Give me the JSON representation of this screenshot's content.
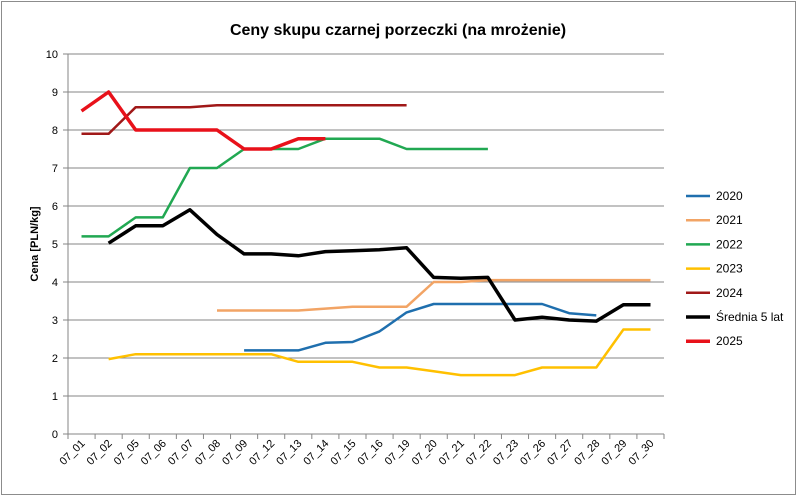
{
  "chart_data": {
    "type": "line",
    "title": "Ceny skupu czarnej porzeczki (na mrożenie)",
    "ylabel": "Cena [PLN/kg]",
    "xlabel": "",
    "ylim": [
      0,
      10
    ],
    "yticks": [
      "0",
      "1",
      "2",
      "3",
      "4",
      "5",
      "6",
      "7",
      "8",
      "9",
      "10"
    ],
    "grid": "horizontal",
    "legend_position": "right",
    "categories": [
      "07_01",
      "07_02",
      "07_05",
      "07_06",
      "07_07",
      "07_08",
      "07_09",
      "07_12",
      "07_13",
      "07_14",
      "07_15",
      "07_16",
      "07_19",
      "07_20",
      "07_21",
      "07_22",
      "07_23",
      "07_26",
      "07_27",
      "07_28",
      "07_29",
      "07_30"
    ],
    "series": [
      {
        "name": "2020",
        "color": "#1f6fae",
        "width": 2.5,
        "values": [
          null,
          null,
          null,
          null,
          null,
          null,
          2.2,
          2.2,
          2.2,
          2.4,
          2.42,
          2.7,
          3.2,
          3.42,
          3.42,
          3.42,
          3.42,
          3.42,
          3.18,
          3.12,
          null,
          null
        ]
      },
      {
        "name": "2021",
        "color": "#f2a465",
        "width": 2.5,
        "values": [
          null,
          null,
          null,
          null,
          null,
          3.25,
          3.25,
          3.25,
          3.25,
          3.3,
          3.35,
          3.35,
          3.35,
          4.0,
          4.0,
          4.05,
          4.05,
          4.05,
          4.05,
          4.05,
          4.05,
          4.05
        ]
      },
      {
        "name": "2022",
        "color": "#21a852",
        "width": 2.5,
        "values": [
          5.2,
          5.2,
          5.7,
          5.7,
          7.0,
          7.0,
          7.5,
          7.5,
          7.5,
          7.77,
          7.77,
          7.77,
          7.5,
          7.5,
          7.5,
          7.5,
          null,
          null,
          null,
          null,
          null,
          null
        ]
      },
      {
        "name": "2023",
        "color": "#ffc000",
        "width": 2.5,
        "values": [
          null,
          1.97,
          2.1,
          2.1,
          2.1,
          2.1,
          2.1,
          2.1,
          1.9,
          1.9,
          1.9,
          1.75,
          1.75,
          1.65,
          1.55,
          1.55,
          1.55,
          1.75,
          1.75,
          1.75,
          2.75,
          2.75
        ]
      },
      {
        "name": "2024",
        "color": "#a01818",
        "width": 2.5,
        "values": [
          7.9,
          7.9,
          8.6,
          8.6,
          8.6,
          8.65,
          8.65,
          8.65,
          8.65,
          8.65,
          8.65,
          8.65,
          8.65,
          null,
          null,
          null,
          null,
          null,
          null,
          null,
          null,
          null
        ]
      },
      {
        "name": "Średnia 5 lat",
        "color": "#000000",
        "width": 3.5,
        "values": [
          null,
          5.02,
          5.48,
          5.48,
          5.9,
          5.25,
          4.74,
          4.74,
          4.69,
          4.8,
          4.82,
          4.85,
          4.9,
          4.12,
          4.1,
          4.12,
          3.0,
          3.07,
          3.0,
          2.97,
          3.4,
          3.4
        ]
      },
      {
        "name": "2025",
        "color": "#e8111a",
        "width": 3.5,
        "values": [
          8.5,
          9.0,
          8.0,
          8.0,
          8.0,
          8.0,
          7.5,
          7.5,
          7.77,
          7.77,
          null,
          null,
          null,
          null,
          null,
          null,
          null,
          null,
          null,
          null,
          null,
          null
        ]
      }
    ]
  }
}
